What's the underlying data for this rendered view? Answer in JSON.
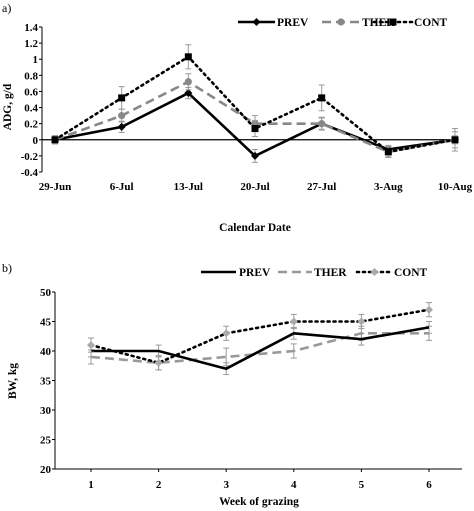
{
  "chart_data": [
    {
      "type": "line",
      "panel_label": "a)",
      "xlabel": "Calendar Date",
      "ylabel": "ADG, g/d",
      "categories": [
        "29-Jun",
        "6-Jul",
        "13-Jul",
        "20-Jul",
        "27-Jul",
        "3-Aug",
        "10-Aug"
      ],
      "ylim": [
        -0.4,
        1.4
      ],
      "yticks": [
        "-0.4",
        "-0.2",
        "0",
        "0.2",
        "0.4",
        "0.6",
        "0.8",
        "1",
        "1.2",
        "1.4"
      ],
      "legend_position": "top-right",
      "grid": false,
      "series": [
        {
          "name": "PREV",
          "color": "#000000",
          "style": "solid",
          "marker": "diamond",
          "values": [
            0,
            0.16,
            0.58,
            -0.2,
            0.2,
            -0.12,
            0
          ],
          "errors": [
            0.05,
            0.07,
            0.07,
            0.08,
            0.07,
            0.05,
            0.05
          ]
        },
        {
          "name": "THER",
          "color": "#888888",
          "style": "dashed",
          "marker": "circle",
          "values": [
            0,
            0.3,
            0.72,
            0.2,
            0.2,
            -0.15,
            0
          ],
          "errors": [
            0.05,
            0.08,
            0.1,
            0.1,
            0.08,
            0.06,
            0.1
          ]
        },
        {
          "name": "CONT",
          "color": "#000000",
          "style": "dotted",
          "marker": "square",
          "values": [
            0,
            0.52,
            1.03,
            0.14,
            0.52,
            -0.15,
            0
          ],
          "errors": [
            0.05,
            0.14,
            0.15,
            0.1,
            0.16,
            0.07,
            0.14
          ]
        }
      ]
    },
    {
      "type": "line",
      "panel_label": "b)",
      "xlabel": "Week of grazing",
      "ylabel": "BW, kg",
      "categories": [
        "1",
        "2",
        "3",
        "4",
        "5",
        "6"
      ],
      "ylim": [
        20,
        50
      ],
      "yticks": [
        "20",
        "25",
        "30",
        "35",
        "40",
        "45",
        "50"
      ],
      "legend_position": "top-right",
      "grid": false,
      "series": [
        {
          "name": "PREV",
          "color": "#000000",
          "style": "solid",
          "marker": "none",
          "values": [
            40,
            40,
            37,
            43,
            42,
            44
          ],
          "errors": [
            1,
            1,
            1,
            1,
            1,
            1
          ]
        },
        {
          "name": "THER",
          "color": "#999999",
          "style": "dashed",
          "marker": "none",
          "values": [
            39,
            38,
            39,
            40,
            43,
            43
          ],
          "errors": [
            1.2,
            1.2,
            1.5,
            1.2,
            1.2,
            1.2
          ]
        },
        {
          "name": "CONT",
          "color": "#000000",
          "style": "dotted",
          "marker": "diamond",
          "values": [
            41,
            38,
            43,
            45,
            45,
            47
          ],
          "errors": [
            1.2,
            1.2,
            1.2,
            1.2,
            1.2,
            1.2
          ]
        }
      ]
    }
  ]
}
